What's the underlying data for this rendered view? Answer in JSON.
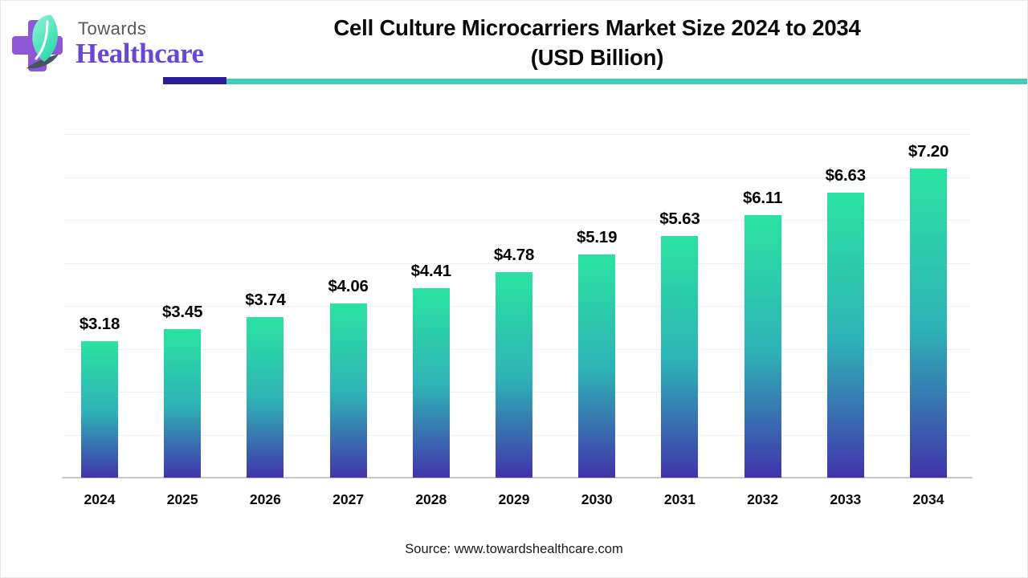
{
  "brand": {
    "towards": "Towards",
    "healthcare": "Healthcare"
  },
  "header": {
    "title_line1": "Cell Culture Microcarriers Market Size 2024 to 2034",
    "title_line2": "(USD Billion)"
  },
  "source_caption": "Source: www.towardshealthcare.com",
  "colors": {
    "rule_purple": "#2b1b9b",
    "rule_teal": "#3fd0b4",
    "bar_top": "#2be3a1",
    "bar_mid": "#2eb2b6",
    "bar_bottom": "#4134ab",
    "grid": "#eff1f3",
    "axis": "#c6c6c8",
    "logo_cross": "#8e57d8",
    "logo_leaf_light": "#8ff2d8",
    "logo_leaf_dark": "#2cd9ac",
    "brand_healthcare_color": "#6747d3"
  },
  "chart_data": {
    "type": "bar",
    "title": "Cell Culture Microcarriers Market Size 2024 to 2034 (USD Billion)",
    "categories": [
      "2024",
      "2025",
      "2026",
      "2027",
      "2028",
      "2029",
      "2030",
      "2031",
      "2032",
      "2033",
      "2034"
    ],
    "values": [
      3.18,
      3.45,
      3.74,
      4.06,
      4.41,
      4.78,
      5.19,
      5.63,
      6.11,
      6.63,
      7.2
    ],
    "data_labels": [
      "$3.18",
      "$3.45",
      "$3.74",
      "$4.06",
      "$4.41",
      "$4.78",
      "$5.19",
      "$5.63",
      "$6.11",
      "$6.63",
      "$7.20"
    ],
    "xlabel": "",
    "ylabel": "",
    "ylim": [
      0,
      8
    ],
    "grid_step": 1,
    "grid": "horizontal, light gray, y-axis unlabeled",
    "legend": "none",
    "bar_color": "vertical gradient green->teal->indigo"
  }
}
